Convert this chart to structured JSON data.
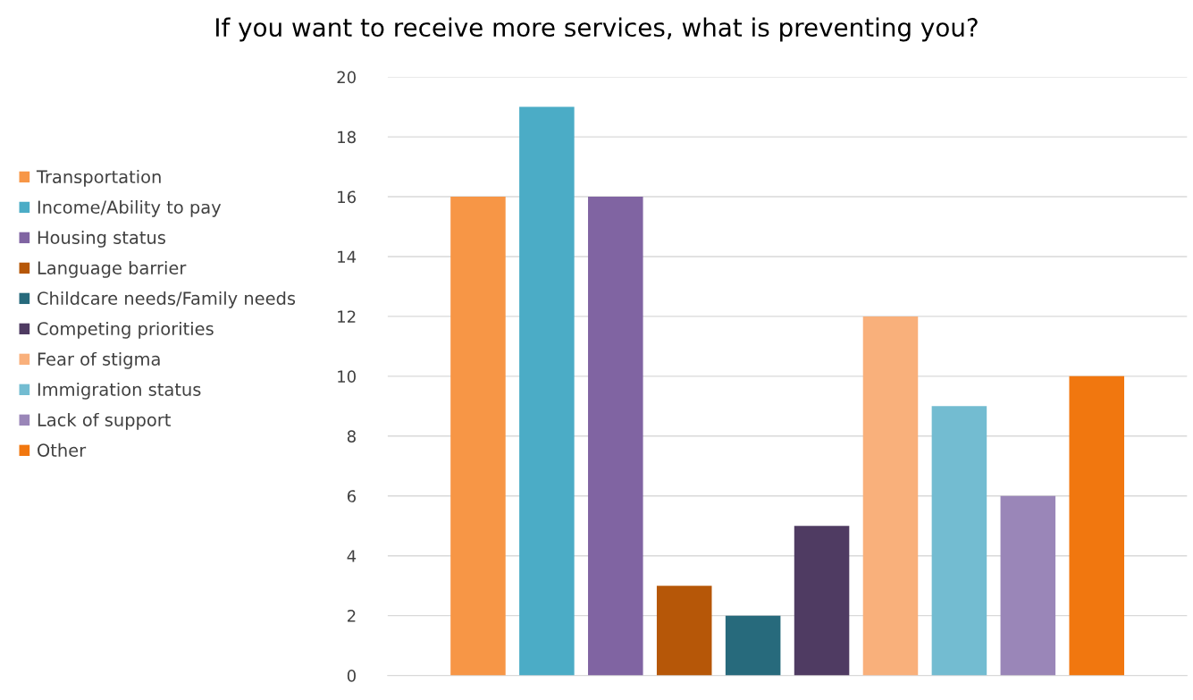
{
  "chart_data": {
    "type": "bar",
    "title": "If you want to receive more services, what is preventing you?",
    "categories": [
      null
    ],
    "series": [
      {
        "name": "Transportation",
        "color": "#f79646",
        "values": [
          16
        ]
      },
      {
        "name": "Income/Ability to pay",
        "color": "#4bacc6",
        "values": [
          19
        ]
      },
      {
        "name": "Housing status",
        "color": "#8064a2",
        "values": [
          16
        ]
      },
      {
        "name": "Language barrier",
        "color": "#b65708",
        "values": [
          3
        ]
      },
      {
        "name": "Childcare needs/Family needs",
        "color": "#276a7c",
        "values": [
          2
        ]
      },
      {
        "name": "Competing priorities",
        "color": "#4f3b62",
        "values": [
          5
        ]
      },
      {
        "name": "Fear of stigma",
        "color": "#f9b07b",
        "values": [
          12
        ]
      },
      {
        "name": "Immigration status",
        "color": "#73bcd1",
        "values": [
          9
        ]
      },
      {
        "name": "Lack of support",
        "color": "#9a86b8",
        "values": [
          6
        ]
      },
      {
        "name": "Other",
        "color": "#f1770f",
        "values": [
          10
        ]
      }
    ],
    "ylim": [
      0,
      20
    ],
    "yticks": [
      0,
      2,
      4,
      6,
      8,
      10,
      12,
      14,
      16,
      18,
      20
    ],
    "grid": "y",
    "legend": "left"
  }
}
